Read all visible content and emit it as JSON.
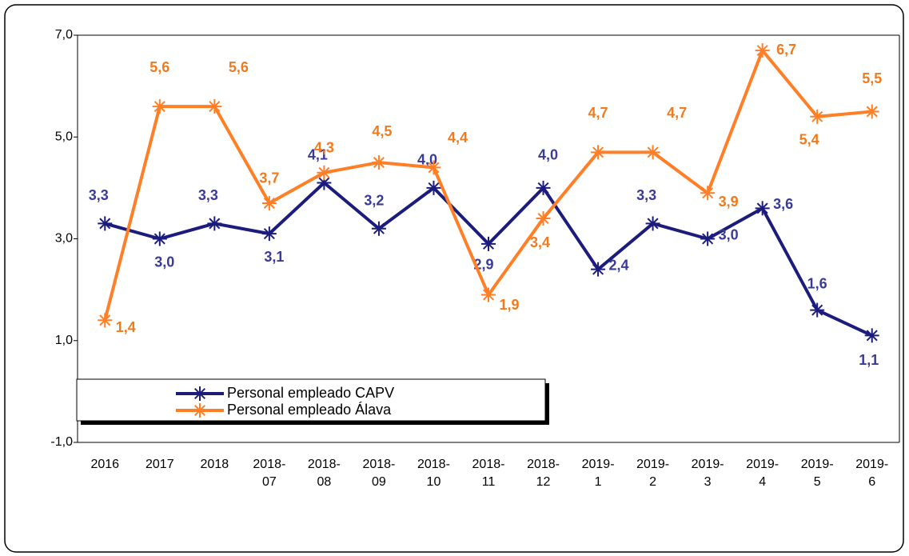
{
  "chart_data": {
    "type": "line",
    "categories": [
      "2016",
      "2017",
      "2018",
      "2018-07",
      "2018-08",
      "2018-09",
      "2018-10",
      "2018-11",
      "2018-12",
      "2019-1",
      "2019-2",
      "2019-3",
      "2019-4",
      "2019-5",
      "2019-6"
    ],
    "series": [
      {
        "name": "Personal empleado CAPV",
        "color": "#1c1c7c",
        "label_color": "#3a3a98",
        "values": [
          3.3,
          3.0,
          3.3,
          3.1,
          4.1,
          3.2,
          4.0,
          2.9,
          4.0,
          2.4,
          3.3,
          3.0,
          3.6,
          1.6,
          1.1
        ],
        "value_labels": [
          "3,3",
          "3,0",
          "3,3",
          "3,1",
          "4,1",
          "3,2",
          "4,0",
          "2,9",
          "4,0",
          "2,4",
          "3,3",
          "3,0",
          "3,6",
          "1,6",
          "1,1"
        ]
      },
      {
        "name": "Personal empleado Álava",
        "color": "#ff7f27",
        "label_color": "#f07a1e",
        "values": [
          1.4,
          5.6,
          5.6,
          3.7,
          4.3,
          4.5,
          4.4,
          1.9,
          3.4,
          4.7,
          4.7,
          3.9,
          6.7,
          5.4,
          5.5
        ],
        "value_labels": [
          "1,4",
          "5,6",
          "5,6",
          "3,7",
          "4,3",
          "4,5",
          "4,4",
          "1,9",
          "3,4",
          "4,7",
          "4,7",
          "3,9",
          "6,7",
          "5,4",
          "5,5"
        ]
      }
    ],
    "ylim": [
      -1,
      7
    ],
    "yticks": [
      {
        "value": -1,
        "label": "-1,0"
      },
      {
        "value": 1,
        "label": "1,0"
      },
      {
        "value": 3,
        "label": "3,0"
      },
      {
        "value": 5,
        "label": "5,0"
      },
      {
        "value": 7,
        "label": "7,0"
      }
    ],
    "grid": false
  }
}
